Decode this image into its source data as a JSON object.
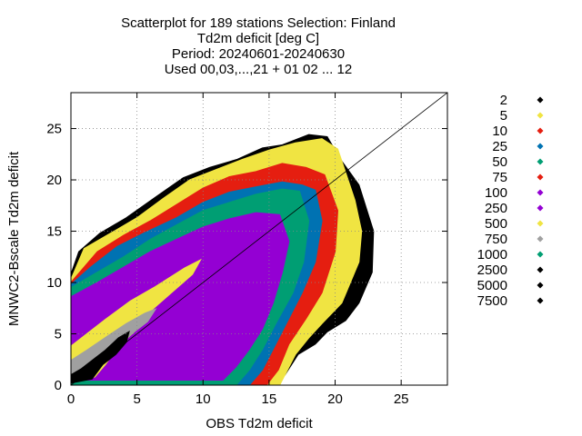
{
  "chart_data": {
    "type": "scatter",
    "title_lines": [
      "Scatterplot for  189 stations Selection: Finland",
      "Td2m deficit [deg C]",
      "Period: 20240601-20240630",
      "Used 00,03,...,21 + 01 02 ... 12"
    ],
    "xlabel": "OBS Td2m deficit",
    "ylabel": "MNWC2-Bscale Td2m deficit",
    "xlim": [
      0,
      28.5
    ],
    "ylim": [
      0,
      28.5
    ],
    "xticks": [
      0,
      5,
      10,
      15,
      20,
      25
    ],
    "yticks": [
      0,
      5,
      10,
      15,
      20,
      25
    ],
    "grid": true,
    "diagonal_line": true,
    "legend_position": "right",
    "legend": [
      {
        "label": "2",
        "color": "#000000"
      },
      {
        "label": "5",
        "color": "#f0e442"
      },
      {
        "label": "10",
        "color": "#e51e10"
      },
      {
        "label": "25",
        "color": "#0072b2"
      },
      {
        "label": "50",
        "color": "#009e73"
      },
      {
        "label": "75",
        "color": "#e51e10"
      },
      {
        "label": "100",
        "color": "#9400d3"
      },
      {
        "label": "250",
        "color": "#9400d3"
      },
      {
        "label": "500",
        "color": "#f0e442"
      },
      {
        "label": "750",
        "color": "#a0a0a0"
      },
      {
        "label": "1000",
        "color": "#009e73"
      },
      {
        "label": "2500",
        "color": "#000000"
      },
      {
        "label": "5000",
        "color": "#000000"
      },
      {
        "label": "7500",
        "color": "#000000"
      }
    ],
    "density_bands": [
      {
        "level": "2",
        "color": "#000000",
        "points": [
          [
            0,
            10.8
          ],
          [
            0.6,
            13
          ],
          [
            2.2,
            14.8
          ],
          [
            4.2,
            16.3
          ],
          [
            6.5,
            18.4
          ],
          [
            8.5,
            20.2
          ],
          [
            10.5,
            21.2
          ],
          [
            12.6,
            22
          ],
          [
            14.5,
            23.1
          ],
          [
            16,
            23.4
          ],
          [
            18,
            24.4
          ],
          [
            19.4,
            24.2
          ],
          [
            20.4,
            22
          ],
          [
            21.8,
            19.5
          ],
          [
            22.9,
            15
          ],
          [
            22.8,
            11
          ],
          [
            21.8,
            8
          ],
          [
            20.8,
            6.3
          ],
          [
            19.4,
            5.2
          ],
          [
            18.5,
            4
          ],
          [
            17.2,
            3
          ],
          [
            16.2,
            1
          ],
          [
            15.3,
            0
          ],
          [
            0,
            0
          ]
        ]
      },
      {
        "level": "5",
        "color": "#f0e442",
        "points": [
          [
            0,
            10.3
          ],
          [
            1,
            13.3
          ],
          [
            3,
            14.8
          ],
          [
            5,
            16.3
          ],
          [
            7,
            18.2
          ],
          [
            9,
            20
          ],
          [
            11,
            21
          ],
          [
            13,
            22
          ],
          [
            15,
            22.9
          ],
          [
            17,
            23.6
          ],
          [
            19,
            24
          ],
          [
            20.2,
            23
          ],
          [
            21.5,
            18
          ],
          [
            22,
            15
          ],
          [
            21.8,
            12
          ],
          [
            20.5,
            8
          ],
          [
            19,
            6
          ],
          [
            18,
            4.6
          ],
          [
            17,
            3
          ],
          [
            15.8,
            0
          ],
          [
            0,
            0
          ]
        ]
      },
      {
        "level": "10",
        "color": "#e51e10",
        "points": [
          [
            0,
            10
          ],
          [
            2,
            13
          ],
          [
            4,
            14.6
          ],
          [
            6,
            16
          ],
          [
            8,
            17.6
          ],
          [
            10,
            19.2
          ],
          [
            12,
            20.3
          ],
          [
            14,
            20.8
          ],
          [
            16,
            21.6
          ],
          [
            17.8,
            21.2
          ],
          [
            19.2,
            20.5
          ],
          [
            20.2,
            17
          ],
          [
            20,
            13
          ],
          [
            19,
            9
          ],
          [
            17.8,
            6.5
          ],
          [
            16.5,
            4
          ],
          [
            15.7,
            1.5
          ],
          [
            14.8,
            0
          ],
          [
            0,
            0
          ]
        ]
      },
      {
        "level": "25",
        "color": "#0072b2",
        "points": [
          [
            0,
            9.8
          ],
          [
            1.5,
            11.5
          ],
          [
            3.5,
            13.5
          ],
          [
            5.5,
            14.8
          ],
          [
            8,
            16.3
          ],
          [
            10,
            17.8
          ],
          [
            12,
            18.8
          ],
          [
            14,
            19.3
          ],
          [
            16,
            19.8
          ],
          [
            17.5,
            19.5
          ],
          [
            18.5,
            19
          ],
          [
            19,
            16
          ],
          [
            18.5,
            12
          ],
          [
            17.5,
            9
          ],
          [
            16.3,
            6
          ],
          [
            15.3,
            3.5
          ],
          [
            14.5,
            1.5
          ],
          [
            13.5,
            0
          ],
          [
            0,
            0
          ]
        ]
      },
      {
        "level": "50",
        "color": "#009e73",
        "points": [
          [
            0,
            9.5
          ],
          [
            2,
            11
          ],
          [
            4,
            12.5
          ],
          [
            6,
            14.2
          ],
          [
            8,
            15.6
          ],
          [
            10,
            17
          ],
          [
            12,
            17.8
          ],
          [
            14,
            18.6
          ],
          [
            16,
            19.1
          ],
          [
            17.3,
            18.9
          ],
          [
            18,
            16
          ],
          [
            17.6,
            12
          ],
          [
            16.8,
            9
          ],
          [
            15.5,
            6
          ],
          [
            14.5,
            3.5
          ],
          [
            13.5,
            1.5
          ],
          [
            12.5,
            0
          ],
          [
            0,
            0
          ]
        ]
      },
      {
        "level": "100",
        "color": "#9400d3",
        "points": [
          [
            0,
            8.6
          ],
          [
            2,
            10
          ],
          [
            4,
            11.5
          ],
          [
            6,
            13
          ],
          [
            8,
            14.2
          ],
          [
            10,
            15.4
          ],
          [
            12,
            16.2
          ],
          [
            14,
            16.8
          ],
          [
            15.8,
            16.6
          ],
          [
            16.5,
            14
          ],
          [
            16,
            11
          ],
          [
            15.3,
            8
          ],
          [
            14.5,
            5.5
          ],
          [
            13.5,
            3.5
          ],
          [
            12.5,
            1.8
          ],
          [
            11.5,
            0.5
          ],
          [
            0,
            0.5
          ]
        ]
      },
      {
        "level": "500",
        "color": "#f0e442",
        "points": [
          [
            0,
            3.8
          ],
          [
            1,
            4.8
          ],
          [
            2.6,
            6.4
          ],
          [
            4.5,
            8.2
          ],
          [
            6.4,
            9.6
          ],
          [
            8.6,
            11.4
          ],
          [
            9.8,
            12.2
          ],
          [
            9.2,
            10.8
          ],
          [
            7.6,
            9
          ],
          [
            6,
            7.2
          ],
          [
            4.8,
            5.2
          ],
          [
            3.6,
            3.8
          ],
          [
            2.6,
            2
          ],
          [
            1.8,
            0.8
          ],
          [
            0,
            0.6
          ]
        ]
      },
      {
        "level": "750",
        "color": "#a0a0a0",
        "points": [
          [
            0,
            2.4
          ],
          [
            1.2,
            3.4
          ],
          [
            2.8,
            4.8
          ],
          [
            4.2,
            6
          ],
          [
            5.6,
            7
          ],
          [
            6.4,
            7.4
          ],
          [
            5.8,
            6.2
          ],
          [
            4.6,
            5
          ],
          [
            3.6,
            3.8
          ],
          [
            2.6,
            2.6
          ],
          [
            1.8,
            1.2
          ],
          [
            0,
            1
          ]
        ]
      },
      {
        "level": "2500",
        "color": "#000000",
        "points": [
          [
            0,
            1
          ],
          [
            0.8,
            1.6
          ],
          [
            1.6,
            2.4
          ],
          [
            2.6,
            3.4
          ],
          [
            3.6,
            4.6
          ],
          [
            4.4,
            5.2
          ],
          [
            4.2,
            4.2
          ],
          [
            3.4,
            3
          ],
          [
            2.4,
            2
          ],
          [
            1.6,
            0.6
          ],
          [
            0,
            0.2
          ]
        ]
      }
    ]
  }
}
